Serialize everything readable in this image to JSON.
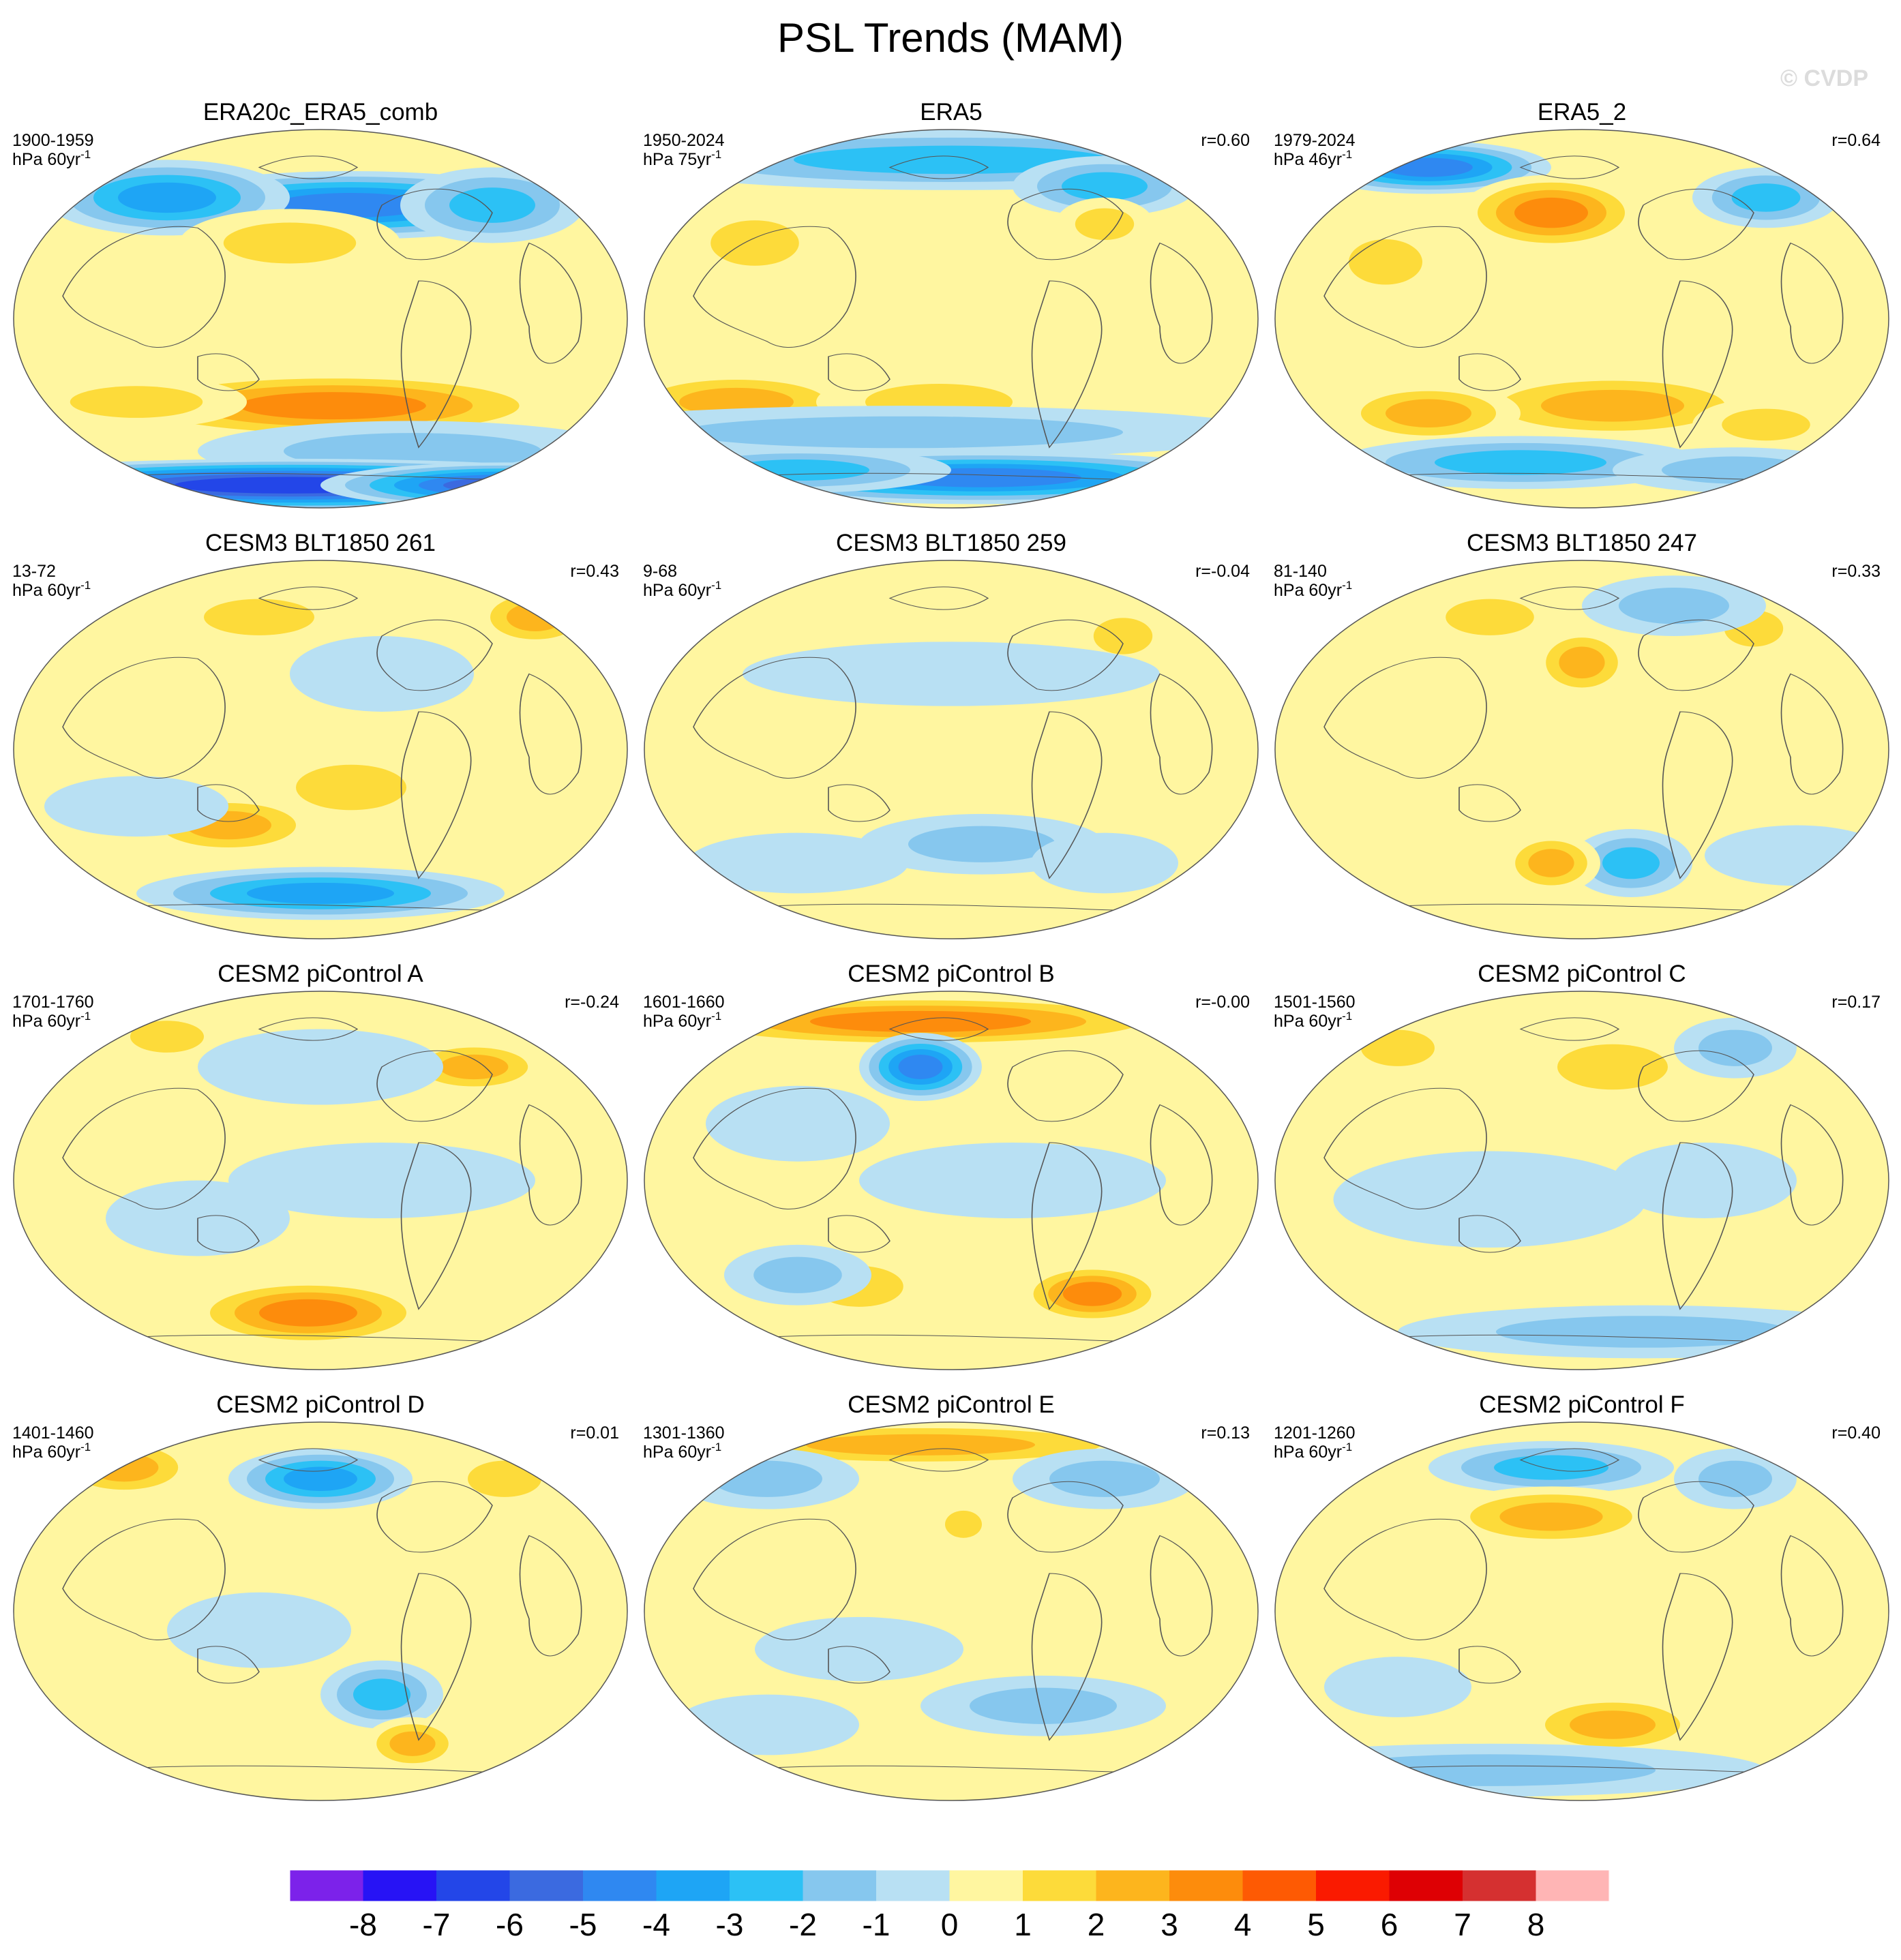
{
  "chart_data": {
    "type": "heatmap",
    "title": "PSL Trends (MAM)",
    "watermark": "© CVDP",
    "projection": "robinson-style global map (Pacific-centered)",
    "panels": [
      {
        "title": "ERA20c_ERA5_comb",
        "period": "1900-1959",
        "units": "hPa 60yr",
        "units_sup": "-1",
        "r": "",
        "blobs": [
          [
            55,
            20,
            35,
            9,
            -5
          ],
          [
            25,
            18,
            20,
            10,
            -4
          ],
          [
            78,
            20,
            15,
            10,
            -3
          ],
          [
            45,
            30,
            18,
            9,
            2
          ],
          [
            30,
            60,
            20,
            9,
            1
          ],
          [
            52,
            73,
            38,
            9,
            3.5
          ],
          [
            20,
            72,
            18,
            7,
            2
          ],
          [
            65,
            85,
            35,
            8,
            -2
          ],
          [
            45,
            94,
            60,
            7,
            -7
          ],
          [
            80,
            94,
            30,
            6,
            -6
          ]
        ]
      },
      {
        "title": "ERA5",
        "period": "1950-2024",
        "units": "hPa 75yr",
        "units_sup": "-1",
        "r": "r=0.60",
        "blobs": [
          [
            50,
            8,
            55,
            8,
            -3
          ],
          [
            75,
            15,
            15,
            8,
            -3
          ],
          [
            18,
            30,
            12,
            10,
            2
          ],
          [
            75,
            25,
            8,
            7,
            2
          ],
          [
            15,
            72,
            20,
            8,
            2.5
          ],
          [
            48,
            72,
            20,
            8,
            2
          ],
          [
            42,
            80,
            60,
            7,
            -2
          ],
          [
            55,
            92,
            45,
            7,
            -5
          ],
          [
            25,
            90,
            25,
            6,
            -3
          ]
        ]
      },
      {
        "title": "ERA5_2",
        "period": "1979-2024",
        "units": "hPa 46yr",
        "units_sup": "-1",
        "r": "r=0.64",
        "blobs": [
          [
            25,
            10,
            20,
            7,
            -5
          ],
          [
            45,
            22,
            15,
            10,
            3.5
          ],
          [
            80,
            18,
            12,
            8,
            -3
          ],
          [
            18,
            35,
            10,
            10,
            2
          ],
          [
            55,
            73,
            25,
            9,
            3
          ],
          [
            25,
            75,
            15,
            8,
            2.5
          ],
          [
            80,
            78,
            12,
            7,
            2
          ],
          [
            40,
            88,
            30,
            7,
            -3
          ],
          [
            75,
            90,
            20,
            6,
            -2
          ]
        ]
      },
      {
        "title": "CESM3 BLT1850 261",
        "period": "13-72",
        "units": "hPa 60yr",
        "units_sup": "-1",
        "r": "r=0.43",
        "blobs": [
          [
            40,
            15,
            15,
            8,
            2
          ],
          [
            85,
            15,
            10,
            8,
            3
          ],
          [
            60,
            30,
            15,
            10,
            -1
          ],
          [
            55,
            60,
            15,
            10,
            2
          ],
          [
            35,
            70,
            15,
            8,
            2.5
          ],
          [
            50,
            88,
            30,
            7,
            -4
          ],
          [
            20,
            65,
            15,
            8,
            -1
          ]
        ]
      },
      {
        "title": "CESM3 BLT1850 259",
        "period": "9-68",
        "units": "hPa 60yr",
        "units_sup": "-1",
        "r": "r=-0.04",
        "blobs": [
          [
            78,
            20,
            8,
            8,
            2
          ],
          [
            30,
            12,
            15,
            6,
            1
          ],
          [
            50,
            30,
            40,
            10,
            -0.6
          ],
          [
            55,
            75,
            20,
            8,
            -1.5
          ],
          [
            75,
            80,
            12,
            8,
            -1
          ],
          [
            25,
            80,
            18,
            8,
            -1
          ]
        ]
      },
      {
        "title": "CESM3 BLT1850 247",
        "period": "81-140",
        "units": "hPa 60yr",
        "units_sup": "-1",
        "r": "r=0.33",
        "blobs": [
          [
            35,
            15,
            12,
            8,
            2
          ],
          [
            50,
            27,
            8,
            9,
            2.5
          ],
          [
            78,
            18,
            8,
            8,
            2
          ],
          [
            65,
            12,
            15,
            8,
            -1.5
          ],
          [
            58,
            80,
            10,
            9,
            -3
          ],
          [
            45,
            80,
            8,
            8,
            2.5
          ],
          [
            85,
            78,
            15,
            8,
            -1
          ]
        ]
      },
      {
        "title": "CESM2 piControl A",
        "period": "1701-1760",
        "units": "hPa 60yr",
        "units_sup": "-1",
        "r": "r=-0.24",
        "blobs": [
          [
            25,
            12,
            10,
            7,
            2
          ],
          [
            75,
            20,
            12,
            7,
            2.5
          ],
          [
            50,
            20,
            20,
            10,
            -1
          ],
          [
            48,
            85,
            20,
            9,
            3.5
          ],
          [
            30,
            60,
            15,
            10,
            -1
          ],
          [
            60,
            50,
            25,
            10,
            -1
          ]
        ]
      },
      {
        "title": "CESM2 piControl B",
        "period": "1601-1660",
        "units": "hPa 60yr",
        "units_sup": "-1",
        "r": "r=-0.00",
        "blobs": [
          [
            45,
            8,
            45,
            7,
            3.5
          ],
          [
            45,
            20,
            10,
            9,
            -5
          ],
          [
            25,
            35,
            15,
            10,
            -1
          ],
          [
            35,
            78,
            12,
            9,
            2
          ],
          [
            73,
            80,
            12,
            8,
            4
          ],
          [
            25,
            75,
            12,
            8,
            -2
          ],
          [
            60,
            50,
            25,
            10,
            -1
          ]
        ]
      },
      {
        "title": "CESM2 piControl C",
        "period": "1501-1560",
        "units": "hPa 60yr",
        "units_sup": "-1",
        "r": "r=0.17",
        "blobs": [
          [
            20,
            15,
            10,
            8,
            2
          ],
          [
            55,
            20,
            15,
            10,
            2
          ],
          [
            75,
            15,
            10,
            8,
            -1.5
          ],
          [
            60,
            90,
            40,
            7,
            -1.5
          ],
          [
            35,
            55,
            30,
            15,
            -0.8
          ],
          [
            70,
            50,
            15,
            10,
            -1
          ]
        ]
      },
      {
        "title": "CESM2 piControl D",
        "period": "1401-1460",
        "units": "hPa 60yr",
        "units_sup": "-1",
        "r": "r=0.01",
        "blobs": [
          [
            18,
            12,
            12,
            8,
            3
          ],
          [
            50,
            15,
            15,
            8,
            -4
          ],
          [
            80,
            15,
            10,
            8,
            2
          ],
          [
            60,
            72,
            10,
            9,
            -3
          ],
          [
            65,
            85,
            8,
            7,
            3
          ],
          [
            40,
            55,
            15,
            10,
            -1
          ]
        ]
      },
      {
        "title": "CESM2 piControl E",
        "period": "1301-1360",
        "units": "hPa 60yr",
        "units_sup": "-1",
        "r": "r=0.13",
        "blobs": [
          [
            45,
            6,
            40,
            6,
            3
          ],
          [
            20,
            15,
            15,
            8,
            -2
          ],
          [
            75,
            15,
            15,
            8,
            -1.5
          ],
          [
            52,
            27,
            5,
            6,
            2
          ],
          [
            35,
            60,
            20,
            10,
            -0.8
          ],
          [
            65,
            75,
            20,
            8,
            -1.2
          ],
          [
            20,
            80,
            15,
            8,
            -1
          ]
        ]
      },
      {
        "title": "CESM2 piControl F",
        "period": "1201-1260",
        "units": "hPa 60yr",
        "units_sup": "-1",
        "r": "r=0.40",
        "blobs": [
          [
            45,
            12,
            20,
            7,
            -3
          ],
          [
            45,
            25,
            18,
            8,
            3
          ],
          [
            75,
            15,
            10,
            8,
            -1.5
          ],
          [
            55,
            80,
            15,
            8,
            3
          ],
          [
            35,
            92,
            45,
            7,
            -2
          ],
          [
            20,
            70,
            12,
            8,
            -1
          ]
        ]
      }
    ],
    "colorbar": {
      "tick_labels": [
        "-8",
        "-7",
        "-6",
        "-5",
        "-4",
        "-3",
        "-2",
        "-1",
        "0",
        "1",
        "2",
        "3",
        "4",
        "5",
        "6",
        "7",
        "8"
      ],
      "colors": [
        "#7c22ea",
        "#2713f5",
        "#2346e8",
        "#3b6ae0",
        "#2f88f1",
        "#1ea5f5",
        "#2cc1f5",
        "#86c7ee",
        "#b8e0f3",
        "#fff6a0",
        "#fddb3a",
        "#fdb51d",
        "#fd8c0c",
        "#fe5a03",
        "#fa1a00",
        "#de0004",
        "#d53030",
        "#ffb5b5"
      ]
    }
  }
}
